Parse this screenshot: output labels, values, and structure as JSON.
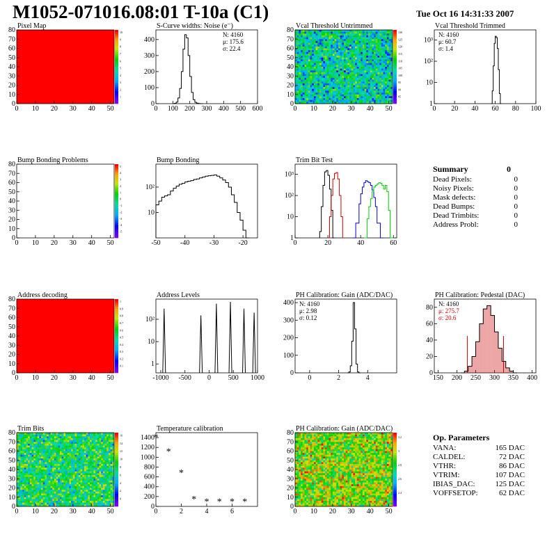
{
  "title": "M1052-071016.08:01 T-10a (C1)",
  "date": "Tue Oct 16 14:31:33 2007",
  "colors": {
    "red_map": "#ff0000",
    "black": "#000000",
    "trim_red": "#cc0000",
    "trim_blue": "#0000cc",
    "trim_green": "#00cc00",
    "pedestal_fill": "#cc0000"
  },
  "summary": {
    "title": "Summary",
    "total": "0",
    "rows": [
      {
        "label": "Dead Pixels:",
        "value": "0"
      },
      {
        "label": "Noisy Pixels:",
        "value": "0"
      },
      {
        "label": "Mask defects:",
        "value": "0"
      },
      {
        "label": "Dead Bumps:",
        "value": "0"
      },
      {
        "label": "Dead Trimbits:",
        "value": "0"
      },
      {
        "label": "Address Probl:",
        "value": "0"
      }
    ]
  },
  "op_params": {
    "title": "Op. Parameters",
    "rows": [
      {
        "label": "VANA:",
        "value": "165 DAC"
      },
      {
        "label": "CALDEL:",
        "value": "72 DAC"
      },
      {
        "label": "VTHR:",
        "value": "86 DAC"
      },
      {
        "label": "VTRIM:",
        "value": "107 DAC"
      },
      {
        "label": "IBIAS_DAC:",
        "value": "125 DAC"
      },
      {
        "label": "VOFFSETOP:",
        "value": "62 DAC"
      }
    ]
  },
  "chart_data": [
    {
      "id": "pixel-map",
      "type": "heatmap",
      "title": "Pixel Map",
      "xlim": [
        0,
        52
      ],
      "ylim": [
        0,
        80
      ],
      "xticks": [
        0,
        10,
        20,
        30,
        40,
        50
      ],
      "yticks": [
        0,
        10,
        20,
        30,
        40,
        50,
        60,
        70,
        80
      ],
      "fill": "uniform",
      "value": 10,
      "zlim": [
        0,
        10
      ],
      "zticks": [
        "1",
        "2",
        "3",
        "4",
        "5",
        "6",
        "7",
        "8",
        "9",
        "10"
      ]
    },
    {
      "id": "scurve",
      "type": "histogram",
      "title": "S-Curve widths: Noise (e⁻)",
      "xlim": [
        0,
        600
      ],
      "ylim": [
        0,
        460
      ],
      "xticks": [
        0,
        100,
        200,
        300,
        400,
        500,
        600
      ],
      "yticks": [
        0,
        100,
        200,
        300,
        400
      ],
      "stats": [
        "N: 4160",
        "μ: 175.6",
        "σ: 22.4"
      ],
      "x": [
        100,
        110,
        120,
        130,
        140,
        150,
        160,
        170,
        180,
        190,
        200,
        210,
        220,
        230,
        240,
        250,
        260,
        270
      ],
      "y": [
        0,
        2,
        10,
        35,
        95,
        200,
        340,
        430,
        410,
        300,
        170,
        70,
        25,
        8,
        3,
        1,
        0,
        0
      ]
    },
    {
      "id": "vcal-untrimmed",
      "type": "heatmap",
      "title": "Vcal Threshold Untrimmed",
      "xlim": [
        0,
        52
      ],
      "ylim": [
        0,
        80
      ],
      "xticks": [
        0,
        10,
        20,
        30,
        40,
        50
      ],
      "yticks": [
        0,
        10,
        20,
        30,
        40,
        50,
        60,
        70,
        80
      ],
      "fill": "noise",
      "mean": 105,
      "zlim": [
        85,
        130
      ],
      "zticks": [
        "85",
        "90",
        "95",
        "100",
        "105",
        "110",
        "115",
        "120",
        "125",
        "130"
      ]
    },
    {
      "id": "vcal-trimmed",
      "type": "histogram",
      "log": true,
      "title": "Vcal Threshold Trimmed",
      "xlim": [
        0,
        100
      ],
      "ylim": [
        1,
        3000
      ],
      "xticks": [
        0,
        20,
        40,
        60,
        80,
        100
      ],
      "yticks": [
        1,
        10,
        100,
        1000
      ],
      "ylabels": [
        "1",
        "10",
        "10²",
        "10³"
      ],
      "stats": [
        "N: 4160",
        "μ: 60.7",
        "σ:  1.4"
      ],
      "x": [
        56,
        57,
        58,
        59,
        60,
        61,
        62,
        63,
        64,
        65
      ],
      "y": [
        1,
        4,
        60,
        700,
        1500,
        1300,
        400,
        40,
        3,
        1
      ]
    },
    {
      "id": "bump-problems",
      "type": "heatmap",
      "title": "Bump Bonding Problems",
      "xlim": [
        0,
        52
      ],
      "ylim": [
        0,
        80
      ],
      "xticks": [
        0,
        10,
        20,
        30,
        40,
        50
      ],
      "yticks": [
        0,
        10,
        20,
        30,
        40,
        50,
        60,
        70,
        80
      ],
      "fill": "empty",
      "zlim": [
        -5,
        5
      ],
      "zticks": [
        "-5",
        "-4",
        "-3",
        "-2",
        "-1",
        "0",
        "1",
        "2",
        "3",
        "4",
        "5"
      ]
    },
    {
      "id": "bump-bonding",
      "type": "histogram",
      "log": true,
      "title": "Bump Bonding",
      "xlim": [
        -50,
        -15
      ],
      "ylim": [
        1,
        800
      ],
      "xticks": [
        -50,
        -40,
        -30,
        -20
      ],
      "yticks": [
        10,
        100
      ],
      "ylabels": [
        "10",
        "10²"
      ],
      "x": [
        -50,
        -49,
        -48,
        -47,
        -46,
        -45,
        -44,
        -43,
        -42,
        -41,
        -40,
        -39,
        -38,
        -37,
        -36,
        -35,
        -34,
        -33,
        -32,
        -31,
        -30,
        -29,
        -28,
        -27,
        -26,
        -25,
        -24,
        -23,
        -22,
        -21,
        -20,
        -19
      ],
      "y": [
        20,
        28,
        40,
        45,
        50,
        70,
        90,
        110,
        130,
        140,
        160,
        170,
        180,
        200,
        210,
        230,
        250,
        270,
        280,
        290,
        300,
        270,
        230,
        190,
        150,
        100,
        50,
        25,
        10,
        5,
        2,
        1
      ]
    },
    {
      "id": "trim-bit-test",
      "type": "multi-histogram",
      "log": true,
      "title": "Trim Bit Test",
      "xlim": [
        0,
        62
      ],
      "ylim": [
        1,
        3000
      ],
      "xticks": [
        0,
        20,
        40,
        60
      ],
      "yticks": [
        1,
        10,
        100,
        1000
      ],
      "ylabels": [
        "1",
        "10",
        "10²",
        "10³"
      ],
      "series": [
        {
          "color": "#000000",
          "x": [
            15,
            16,
            17,
            18,
            19,
            20,
            21,
            22,
            23
          ],
          "y": [
            2,
            30,
            300,
            1300,
            1500,
            900,
            200,
            20,
            1
          ]
        },
        {
          "color": "#cc0000",
          "x": [
            20,
            21,
            22,
            23,
            24,
            25,
            26,
            27,
            28,
            29
          ],
          "y": [
            1,
            10,
            100,
            600,
            1100,
            1200,
            600,
            100,
            10,
            1
          ]
        },
        {
          "color": "#0000cc",
          "x": [
            35,
            37,
            39,
            40,
            41,
            42,
            43,
            44,
            45,
            46,
            47,
            48,
            49,
            50,
            52
          ],
          "y": [
            1,
            5,
            40,
            120,
            250,
            400,
            500,
            450,
            400,
            300,
            180,
            80,
            30,
            5,
            1
          ]
        },
        {
          "color": "#00cc00",
          "x": [
            42,
            44,
            45,
            46,
            47,
            48,
            49,
            50,
            51,
            52,
            53,
            54,
            55,
            56,
            57,
            58
          ],
          "y": [
            1,
            8,
            30,
            70,
            150,
            250,
            300,
            350,
            400,
            380,
            300,
            200,
            300,
            150,
            20,
            1
          ]
        }
      ]
    },
    {
      "id": "address-decoding",
      "type": "heatmap",
      "title": "Address decoding",
      "xlim": [
        0,
        52
      ],
      "ylim": [
        0,
        80
      ],
      "xticks": [
        0,
        10,
        20,
        30,
        40,
        50
      ],
      "yticks": [
        0,
        10,
        20,
        30,
        40,
        50,
        60,
        70,
        80
      ],
      "fill": "uniform",
      "value": 1,
      "zlim": [
        0,
        1
      ],
      "zticks": [
        "0.1",
        "0.2",
        "0.3",
        "0.4",
        "0.5",
        "0.6",
        "0.7",
        "0.8",
        "0.9",
        "1"
      ]
    },
    {
      "id": "address-levels",
      "type": "histogram",
      "log": true,
      "title": "Address Levels",
      "xlim": [
        -1100,
        1000
      ],
      "ylim": [
        0.4,
        800
      ],
      "xticks": [
        -1000,
        -500,
        0,
        500,
        1000
      ],
      "yticks": [
        1,
        10,
        100
      ],
      "ylabels": [
        "1",
        "10",
        "10²"
      ],
      "peaks": [
        [
          -930,
          300
        ],
        [
          -170,
          150
        ],
        [
          150,
          500
        ],
        [
          440,
          600
        ],
        [
          720,
          300
        ],
        [
          930,
          200
        ]
      ]
    },
    {
      "id": "ph-gain",
      "type": "histogram",
      "title": "PH Calibration: Gain (ADC/DAC)",
      "xlim": [
        -1,
        6
      ],
      "ylim": [
        0,
        420
      ],
      "xticks": [
        0,
        2,
        4
      ],
      "yticks": [
        0,
        100,
        200,
        300,
        400
      ],
      "stats": [
        "N: 4160",
        "μ: 2.98",
        "σ: 0.12"
      ],
      "x": [
        2.6,
        2.7,
        2.8,
        2.9,
        3.0,
        3.1,
        3.2,
        3.3,
        3.4
      ],
      "y": [
        0,
        5,
        40,
        180,
        400,
        250,
        50,
        5,
        0
      ]
    },
    {
      "id": "ph-pedestal",
      "type": "histogram",
      "title": "PH Calibration: Pedestal (DAC)",
      "xlim": [
        140,
        410
      ],
      "ylim": [
        0,
        90
      ],
      "xticks": [
        150,
        200,
        250,
        300,
        350,
        400
      ],
      "yticks": [
        0,
        20,
        40,
        60,
        80
      ],
      "stats": [
        "N: 4160",
        "μ: 275.7",
        "σ: 20.6"
      ],
      "mean": 275.7,
      "sigma": 20.6,
      "markers": [
        228,
        324
      ],
      "x": [
        210,
        220,
        230,
        240,
        250,
        260,
        270,
        280,
        290,
        300,
        310,
        320,
        330,
        340,
        350
      ],
      "y": [
        0,
        2,
        8,
        20,
        38,
        60,
        78,
        82,
        70,
        50,
        30,
        14,
        6,
        2,
        0
      ]
    },
    {
      "id": "trim-bits",
      "type": "heatmap",
      "title": "Trim Bits",
      "xlim": [
        0,
        52
      ],
      "ylim": [
        0,
        80
      ],
      "xticks": [
        0,
        10,
        20,
        30,
        40,
        50
      ],
      "yticks": [
        0,
        10,
        20,
        30,
        40,
        50,
        60,
        70,
        80
      ],
      "fill": "noise",
      "mean": 8.5,
      "zlim": [
        0,
        16
      ],
      "zticks": [
        "0",
        "2",
        "4",
        "6",
        "8",
        "10",
        "12",
        "14",
        "16"
      ]
    },
    {
      "id": "temperature-calibration",
      "type": "scatter",
      "title": "Temperature calibration",
      "xlim": [
        0,
        8
      ],
      "ylim": [
        0,
        1500
      ],
      "xticks": [
        0,
        2,
        4,
        6
      ],
      "yticks": [
        0,
        200,
        400,
        600,
        800,
        1000,
        1200,
        1400
      ],
      "x": [
        0,
        1,
        2,
        3,
        4,
        5,
        6,
        7
      ],
      "y": [
        1400,
        1110,
        680,
        140,
        90,
        90,
        90,
        90
      ]
    },
    {
      "id": "ph-gain-map",
      "type": "heatmap",
      "title": "PH Calibration: Gain (ADC/DAC)",
      "xlim": [
        0,
        52
      ],
      "ylim": [
        0,
        80
      ],
      "xticks": [
        0,
        10,
        20,
        30,
        40,
        50
      ],
      "yticks": [
        0,
        10,
        20,
        30,
        40,
        50,
        60,
        70,
        80
      ],
      "fill": "noise",
      "mean": 3.0,
      "zlim": [
        2.3,
        3.3
      ],
      "zticks": [
        "2.4",
        "2.6",
        "2.8",
        "3",
        "3.2"
      ]
    }
  ]
}
